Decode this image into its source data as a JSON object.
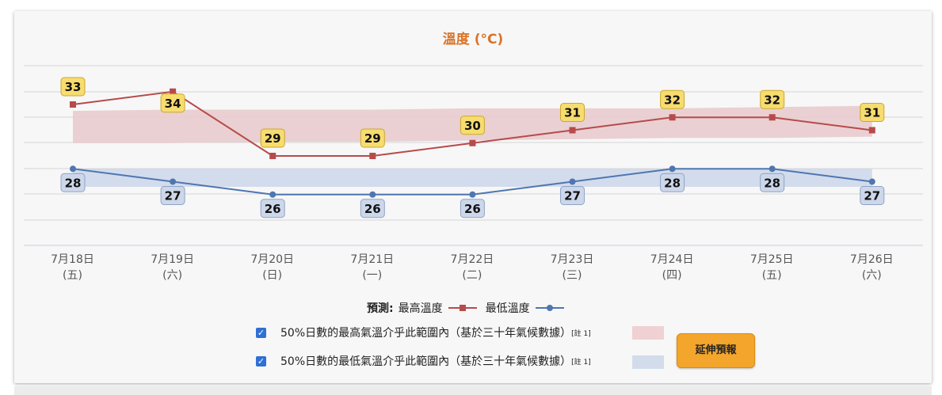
{
  "chart_data": {
    "type": "line",
    "title": "溫度 (°C)",
    "categories": [
      [
        "7月18日",
        "(五)"
      ],
      [
        "7月19日",
        "(六)"
      ],
      [
        "7月20日",
        "(日)"
      ],
      [
        "7月21日",
        "(一)"
      ],
      [
        "7月22日",
        "(二)"
      ],
      [
        "7月23日",
        "(三)"
      ],
      [
        "7月24日",
        "(四)"
      ],
      [
        "7月25日",
        "(五)"
      ],
      [
        "7月26日",
        "(六)"
      ]
    ],
    "series": [
      {
        "name": "最高溫度",
        "color": "#b84a4a",
        "marker": "square",
        "values": [
          33,
          34,
          29,
          29,
          30,
          31,
          32,
          32,
          31
        ]
      },
      {
        "name": "最低溫度",
        "color": "#4f76b0",
        "marker": "circle",
        "values": [
          28,
          27,
          26,
          26,
          26,
          27,
          28,
          28,
          27
        ]
      }
    ],
    "bands": [
      {
        "label": "50%日數的最高氣溫介乎此範圍內（基於三十年氣候數據）",
        "color": "#e8c9cb",
        "low": [
          30.0,
          30.0,
          30.1,
          30.1,
          30.2,
          30.3,
          30.4,
          30.4,
          30.5
        ],
        "high": [
          32.5,
          32.6,
          32.6,
          32.6,
          32.7,
          32.7,
          32.7,
          32.8,
          32.9
        ]
      },
      {
        "label": "50%日數的最低氣溫介乎此範圍內（基於三十年氣候數據）",
        "color": "#ccd7ea",
        "low": [
          26.6,
          26.6,
          26.6,
          26.6,
          26.6,
          26.6,
          26.6,
          26.6,
          26.6
        ],
        "high": [
          28.0,
          28.0,
          28.0,
          28.0,
          28.0,
          28.0,
          28.0,
          28.0,
          28.0
        ]
      }
    ],
    "grid": true,
    "legend": "bottom-center"
  },
  "legend": {
    "prefix": "預測:",
    "max_label": "最高溫度",
    "min_label": "最低溫度"
  },
  "bands_legend": {
    "max_text": "50%日數的最高氣溫介乎此範圍內（基於三十年氣候數據）",
    "min_text": "50%日數的最低氣溫介乎此範圍內（基於三十年氣候數據）",
    "note": "[註 1]"
  },
  "extend_button": {
    "label": "延伸預報"
  }
}
